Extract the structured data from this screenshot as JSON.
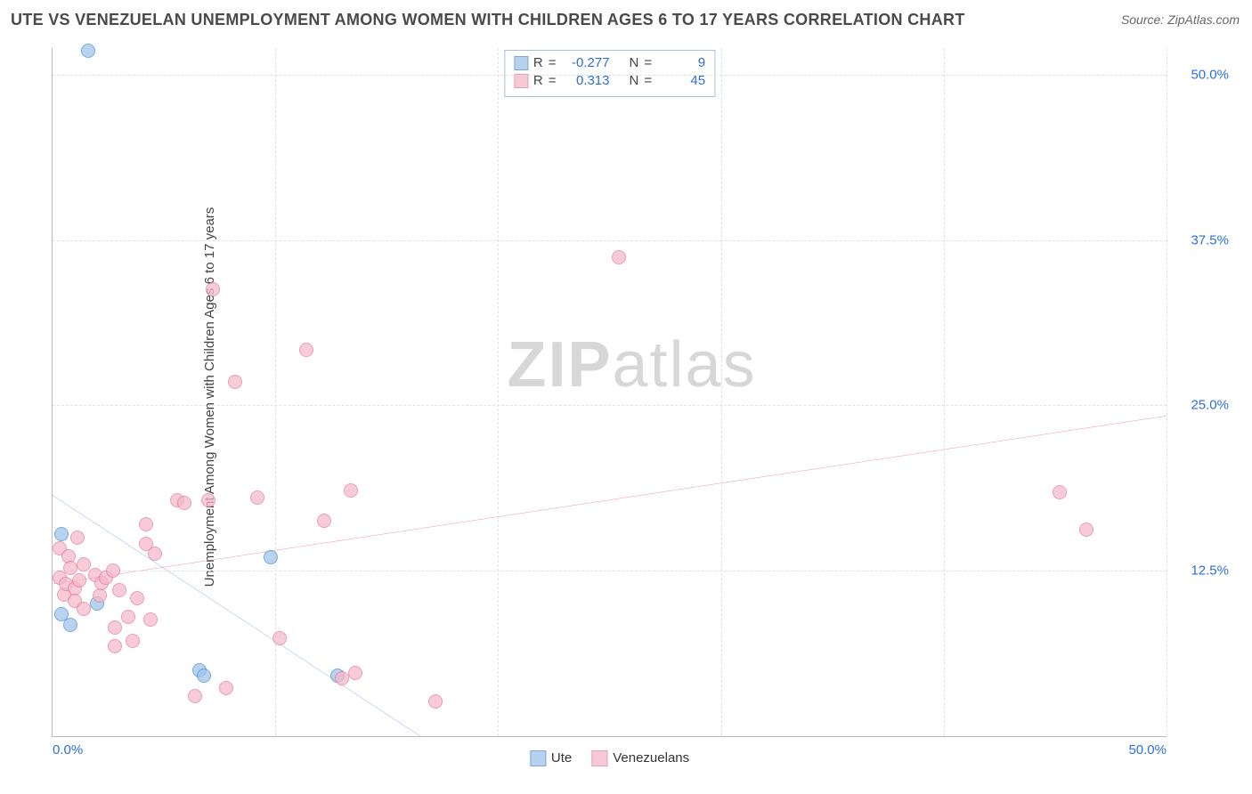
{
  "title": "UTE VS VENEZUELAN UNEMPLOYMENT AMONG WOMEN WITH CHILDREN AGES 6 TO 17 YEARS CORRELATION CHART",
  "source": "Source: ZipAtlas.com",
  "ylabel": "Unemployment Among Women with Children Ages 6 to 17 years",
  "watermark_part1": "ZIP",
  "watermark_part2": "atlas",
  "chart": {
    "type": "scatter",
    "xlim": [
      0,
      50
    ],
    "ylim": [
      0,
      52
    ],
    "xtick_min_label": "0.0%",
    "xtick_max_label": "50.0%",
    "xtick_positions": [
      0,
      10,
      20,
      30,
      40,
      50
    ],
    "ytick_values": [
      12.5,
      25.0,
      37.5,
      50.0
    ],
    "ytick_labels": [
      "12.5%",
      "25.0%",
      "37.5%",
      "50.0%"
    ],
    "grid_color": "#e2e2e2",
    "axis_color": "#bbbbbb",
    "background_color": "#ffffff",
    "tick_label_color": "#2c6fdb",
    "axis_label_color": "#444444",
    "point_radius": 8,
    "point_fill_opacity": 0.28,
    "point_stroke_width": 1.4,
    "line_width": 2.5,
    "series": [
      {
        "name": "Ute",
        "color_stroke": "#4a8ad4",
        "color_fill": "#9fc4ea",
        "line_color": "#2c6fdb",
        "R": "-0.277",
        "N": "9",
        "trend": {
          "x1": 0,
          "y1": 18.2,
          "x2": 16.5,
          "y2": 0
        },
        "points": [
          {
            "x": 1.6,
            "y": 51.8
          },
          {
            "x": 0.4,
            "y": 15.3
          },
          {
            "x": 0.4,
            "y": 9.2
          },
          {
            "x": 0.8,
            "y": 8.4
          },
          {
            "x": 2.0,
            "y": 10.0
          },
          {
            "x": 9.8,
            "y": 13.5
          },
          {
            "x": 6.6,
            "y": 5.0
          },
          {
            "x": 12.8,
            "y": 4.6
          },
          {
            "x": 6.8,
            "y": 4.6
          }
        ]
      },
      {
        "name": "Venezuelans",
        "color_stroke": "#e67a9a",
        "color_fill": "#f5b8c9",
        "line_color": "#e24a7a",
        "R": "0.313",
        "N": "45",
        "trend": {
          "x1": 0,
          "y1": 11.5,
          "x2": 50,
          "y2": 24.2
        },
        "points": [
          {
            "x": 0.3,
            "y": 14.2
          },
          {
            "x": 0.3,
            "y": 12.0
          },
          {
            "x": 0.5,
            "y": 10.7
          },
          {
            "x": 0.6,
            "y": 11.5
          },
          {
            "x": 0.7,
            "y": 13.6
          },
          {
            "x": 0.8,
            "y": 12.7
          },
          {
            "x": 1.0,
            "y": 11.2
          },
          {
            "x": 1.0,
            "y": 10.2
          },
          {
            "x": 1.1,
            "y": 15.0
          },
          {
            "x": 1.2,
            "y": 11.8
          },
          {
            "x": 1.4,
            "y": 13.0
          },
          {
            "x": 1.4,
            "y": 9.6
          },
          {
            "x": 1.9,
            "y": 12.2
          },
          {
            "x": 2.1,
            "y": 10.6
          },
          {
            "x": 2.2,
            "y": 11.6
          },
          {
            "x": 2.4,
            "y": 12.0
          },
          {
            "x": 2.7,
            "y": 12.5
          },
          {
            "x": 2.8,
            "y": 6.8
          },
          {
            "x": 2.8,
            "y": 8.2
          },
          {
            "x": 3.0,
            "y": 11.0
          },
          {
            "x": 3.4,
            "y": 9.0
          },
          {
            "x": 3.6,
            "y": 7.2
          },
          {
            "x": 3.8,
            "y": 10.4
          },
          {
            "x": 4.2,
            "y": 14.5
          },
          {
            "x": 4.2,
            "y": 16.0
          },
          {
            "x": 4.4,
            "y": 8.8
          },
          {
            "x": 4.6,
            "y": 13.8
          },
          {
            "x": 5.6,
            "y": 17.8
          },
          {
            "x": 5.9,
            "y": 17.6
          },
          {
            "x": 6.4,
            "y": 3.0
          },
          {
            "x": 7.0,
            "y": 17.8
          },
          {
            "x": 7.2,
            "y": 33.8
          },
          {
            "x": 7.8,
            "y": 3.6
          },
          {
            "x": 8.2,
            "y": 26.8
          },
          {
            "x": 9.2,
            "y": 18.0
          },
          {
            "x": 10.2,
            "y": 7.4
          },
          {
            "x": 11.4,
            "y": 29.2
          },
          {
            "x": 12.2,
            "y": 16.3
          },
          {
            "x": 13.0,
            "y": 4.4
          },
          {
            "x": 13.4,
            "y": 18.6
          },
          {
            "x": 13.6,
            "y": 4.8
          },
          {
            "x": 17.2,
            "y": 2.6
          },
          {
            "x": 25.4,
            "y": 36.2
          },
          {
            "x": 45.2,
            "y": 18.4
          },
          {
            "x": 46.4,
            "y": 15.6
          }
        ]
      }
    ]
  }
}
